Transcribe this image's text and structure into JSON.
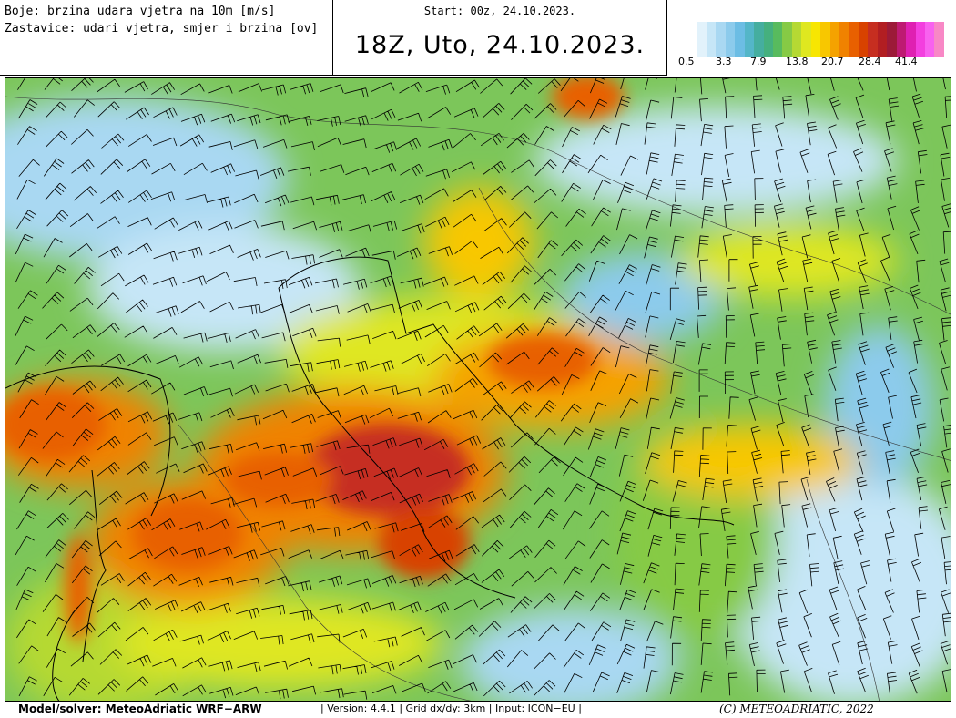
{
  "header": {
    "legend_line_1": "Boje: brzina udara vjetra na 10m [m/s]",
    "legend_line_2": "Zastavice: udari vjetra, smjer i brzina [ov]",
    "start": "Start: 00z, 24.10.2023.",
    "title": "18Z, Uto, 24.10.2023."
  },
  "colorbar": {
    "labels": [
      "0.5",
      "3.3",
      "7.9",
      "13.8",
      "20.7",
      "28.4",
      "41.4"
    ],
    "colors": [
      "#ffffff",
      "#e2f2fb",
      "#c6e6f7",
      "#a9d8f2",
      "#8ccbec",
      "#6cbde4",
      "#54b6c8",
      "#45ae9f",
      "#45b07e",
      "#58bb5e",
      "#86ca45",
      "#b5d933",
      "#dfe720",
      "#f7e602",
      "#f8c700",
      "#f5a200",
      "#f08200",
      "#e86000",
      "#d84200",
      "#c62e20",
      "#b21e22",
      "#9c1a38",
      "#be1a72",
      "#df20b2",
      "#f33fdf",
      "#f862ef",
      "#f888c6"
    ]
  },
  "footer": {
    "model": "Model/solver: MeteoAdriatic WRF−ARW",
    "info": "| Version: 4.4.1 | Grid dx/dy: 3km | Input: ICON−EU |",
    "copyright": "(C) METEOADRIATIC, 2022"
  }
}
